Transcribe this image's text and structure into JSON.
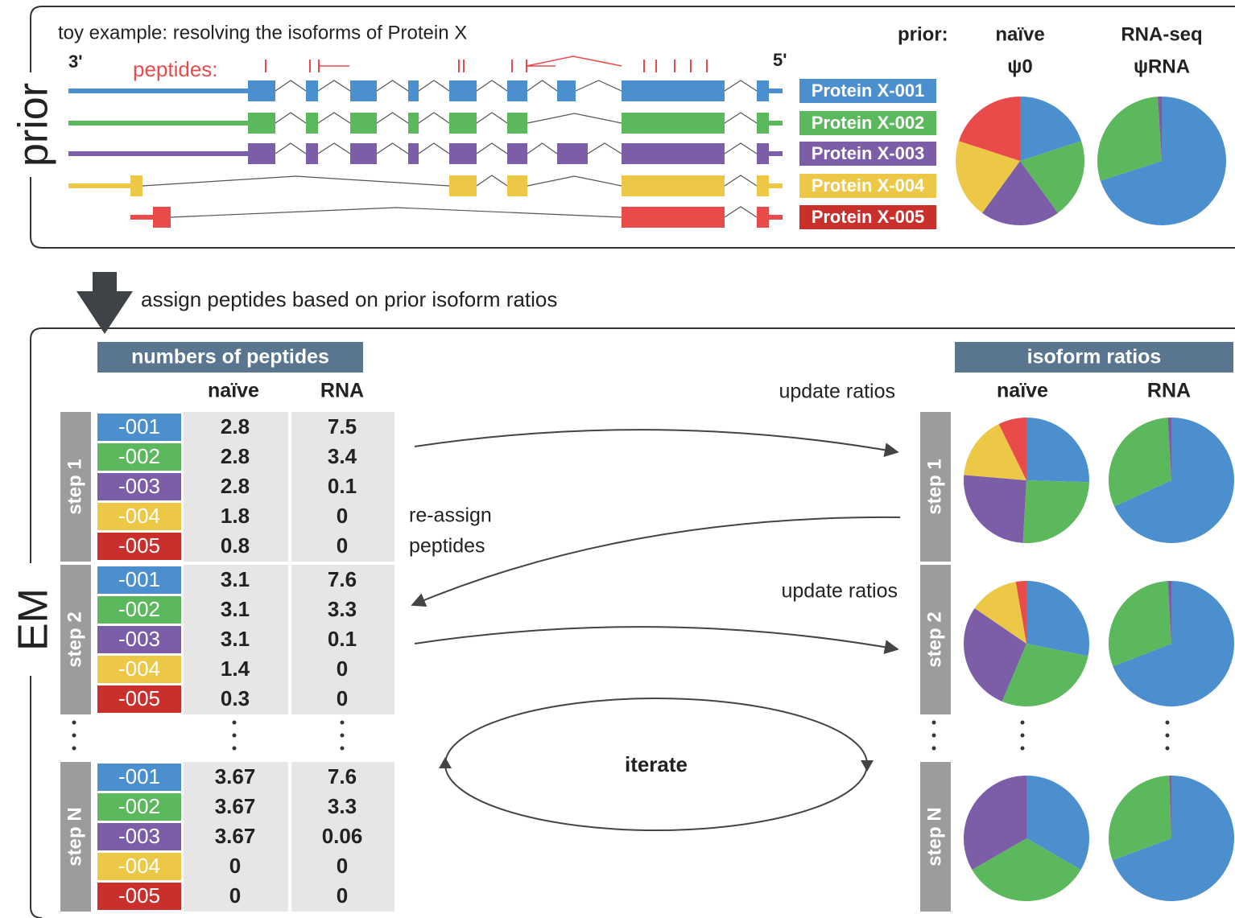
{
  "prior": {
    "title": "toy example: resolving the isoforms of Protein X",
    "label": "prior",
    "three_prime": "3'",
    "five_prime": "5'",
    "peptides_label": "peptides:",
    "proteins": [
      "Protein X-001",
      "Protein X-002",
      "Protein X-003",
      "Protein X-004",
      "Protein X-005"
    ],
    "colors": [
      "#4b8fcf",
      "#5cb85c",
      "#7b5ea7",
      "#ecc846",
      "#e94b4b"
    ],
    "label_colors": [
      "#4b8fcf",
      "#5cb85c",
      "#7b5ea7",
      "#ecc846",
      "#c9302c"
    ],
    "prior_label": "prior:",
    "columns": [
      {
        "name": "naïve",
        "symbol": "ψ0",
        "ratios": [
          20,
          20,
          20,
          20,
          20
        ]
      },
      {
        "name": "RNA-seq",
        "symbol": "ψRNA",
        "ratios": [
          70,
          29,
          1,
          0,
          0
        ]
      }
    ]
  },
  "arrow_label": "assign peptides based on prior isoform ratios",
  "em": {
    "label": "EM",
    "table_title": "numbers of peptides",
    "columns": [
      "naïve",
      "RNA"
    ],
    "ratios_title": "isoform ratios",
    "ratio_columns": [
      "naïve",
      "RNA"
    ],
    "ids": [
      "-001",
      "-002",
      "-003",
      "-004",
      "-005"
    ],
    "steps": [
      {
        "name": "step 1",
        "naive": [
          2.8,
          2.8,
          2.8,
          1.8,
          0.8
        ],
        "rna": [
          7.5,
          3.4,
          0.1,
          0,
          0
        ]
      },
      {
        "name": "step 2",
        "naive": [
          3.1,
          3.1,
          3.1,
          1.4,
          0.3
        ],
        "rna": [
          7.6,
          3.3,
          0.1,
          0,
          0
        ]
      },
      {
        "name": "step N",
        "naive": [
          3.67,
          3.67,
          3.67,
          0,
          0
        ],
        "rna": [
          7.6,
          3.3,
          0.06,
          0,
          0
        ]
      }
    ]
  },
  "flow": {
    "update_1": "update ratios",
    "reassign": [
      "re-assign",
      "peptides"
    ],
    "update_2": "update ratios",
    "iterate": "iterate"
  }
}
